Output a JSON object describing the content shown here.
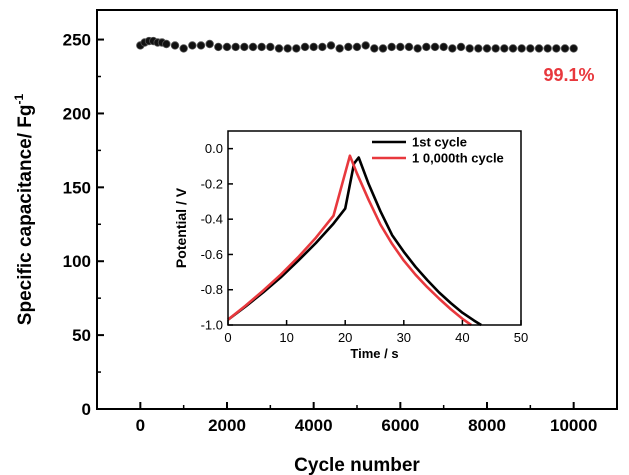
{
  "chart_data": [
    {
      "type": "scatter",
      "xlabel": "Cycle number",
      "ylabel": "Specific capacitance/ Fg",
      "ylabel_sup": "-1",
      "xlim": [
        -1000,
        11000
      ],
      "ylim": [
        0,
        270
      ],
      "xticks": [
        0,
        2000,
        4000,
        6000,
        8000,
        10000
      ],
      "yticks": [
        0,
        50,
        100,
        150,
        200,
        250
      ],
      "annotation": "99.1%",
      "colors": {
        "points": "#111111",
        "annotation": "#e8383d"
      },
      "series": [
        {
          "x": [
            0,
            100,
            200,
            300,
            400,
            500,
            600,
            800,
            1000,
            1200,
            1400,
            1600,
            1800,
            2000,
            2200,
            2400,
            2600,
            2800,
            3000,
            3200,
            3400,
            3600,
            3800,
            4000,
            4200,
            4400,
            4600,
            4800,
            5000,
            5200,
            5400,
            5600,
            5800,
            6000,
            6200,
            6400,
            6600,
            6800,
            7000,
            7200,
            7400,
            7600,
            7800,
            8000,
            8200,
            8400,
            8600,
            8800,
            9000,
            9200,
            9400,
            9600,
            9800,
            10000
          ],
          "y": [
            246,
            248,
            249,
            249,
            248,
            248,
            247,
            246,
            244,
            246,
            246,
            247,
            245,
            245,
            245,
            245,
            245,
            245,
            245,
            244,
            244,
            244,
            245,
            245,
            245,
            246,
            244,
            245,
            245,
            246,
            244,
            244,
            245,
            245,
            245,
            244,
            245,
            245,
            245,
            244,
            245,
            244,
            244,
            244,
            244,
            244,
            244,
            244,
            244,
            244,
            244,
            244,
            244,
            244
          ]
        }
      ]
    },
    {
      "type": "line",
      "xlabel": "Time / s",
      "ylabel": "Potential / V",
      "xlim": [
        0,
        50
      ],
      "ylim": [
        -1.0,
        0.1
      ],
      "xticks": [
        0,
        10,
        20,
        30,
        40,
        50
      ],
      "yticks": [
        0.0,
        -0.2,
        -0.4,
        -0.6,
        -0.8,
        -1.0
      ],
      "legend": "top-right",
      "series": [
        {
          "name": "1st cycle",
          "color": "#000000",
          "x": [
            0,
            3,
            6,
            9,
            12,
            15,
            18,
            20,
            21.5,
            22.3,
            24,
            26,
            28,
            30,
            32,
            34,
            36,
            38,
            40,
            42,
            43.2
          ],
          "y": [
            -0.97,
            -0.895,
            -0.815,
            -0.73,
            -0.635,
            -0.535,
            -0.425,
            -0.34,
            -0.085,
            -0.05,
            -0.2,
            -0.355,
            -0.49,
            -0.585,
            -0.67,
            -0.745,
            -0.815,
            -0.875,
            -0.93,
            -0.975,
            -1.0
          ]
        },
        {
          "name": "1 0,000th cycle",
          "color": "#e8383d",
          "x": [
            0,
            3,
            6,
            9,
            12,
            15,
            18,
            20.8,
            22,
            24,
            26,
            28,
            30,
            32,
            34,
            36,
            38,
            40,
            41.5
          ],
          "y": [
            -0.97,
            -0.89,
            -0.805,
            -0.715,
            -0.615,
            -0.505,
            -0.38,
            -0.04,
            -0.14,
            -0.29,
            -0.43,
            -0.54,
            -0.635,
            -0.715,
            -0.785,
            -0.85,
            -0.91,
            -0.965,
            -1.0
          ]
        }
      ]
    }
  ]
}
